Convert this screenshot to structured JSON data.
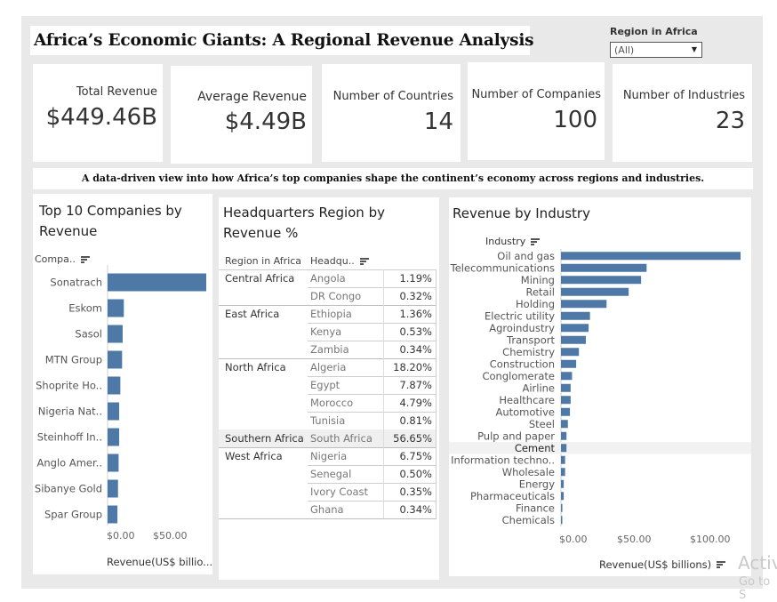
{
  "title": "Africa’s Economic Giants: A Regional Revenue Analysis",
  "filter": {
    "label": "Region in Africa",
    "value": "(All)"
  },
  "kpis": [
    {
      "label": "Total Revenue",
      "value": "$449.46B"
    },
    {
      "label": "Average Revenue",
      "value": "$4.49B"
    },
    {
      "label": "Number of Countries",
      "value": "14"
    },
    {
      "label": "Number of Companies",
      "value": "100"
    },
    {
      "label": "Number of Industries",
      "value": "23"
    }
  ],
  "subtitle": "A data-driven view into how Africa’s top companies shape the continent’s economy across regions and industries.",
  "top_companies": {
    "title_line1": "Top 10 Companies by",
    "title_line2": "Revenue",
    "header": "Compa..",
    "axis_ticks": [
      "$0.00",
      "$50.00"
    ],
    "axis_label": "Revenue(US$ billio..."
  },
  "hq_table": {
    "title_line1": "Headquarters Region by",
    "title_line2": "Revenue  %",
    "col1": "Region in Africa",
    "col2": "Headqu..",
    "groups": [
      {
        "region": "Central Africa",
        "rows": [
          {
            "country": "Angola",
            "pct": "1.19%"
          },
          {
            "country": "DR Congo",
            "pct": "0.32%"
          }
        ]
      },
      {
        "region": "East Africa",
        "rows": [
          {
            "country": "Ethiopia",
            "pct": "1.36%"
          },
          {
            "country": "Kenya",
            "pct": "0.53%"
          },
          {
            "country": "Zambia",
            "pct": "0.34%"
          }
        ]
      },
      {
        "region": "North Africa",
        "rows": [
          {
            "country": "Algeria",
            "pct": "18.20%"
          },
          {
            "country": "Egypt",
            "pct": "7.87%"
          },
          {
            "country": "Morocco",
            "pct": "4.79%"
          },
          {
            "country": "Tunisia",
            "pct": "0.81%"
          }
        ]
      },
      {
        "region": "Southern Africa",
        "rows": [
          {
            "country": "South Africa",
            "pct": "56.65%"
          }
        ]
      },
      {
        "region": "West Africa",
        "rows": [
          {
            "country": "Nigeria",
            "pct": "6.75%"
          },
          {
            "country": "Senegal",
            "pct": "0.50%"
          },
          {
            "country": "Ivory Coast",
            "pct": "0.35%"
          },
          {
            "country": "Ghana",
            "pct": "0.34%"
          }
        ]
      }
    ]
  },
  "industry": {
    "title": "Revenue by Industry",
    "header": "Industry",
    "axis_ticks": [
      "$0.00",
      "$50.00",
      "$100.00"
    ],
    "axis_label": "Revenue(US$ billions)"
  },
  "watermark": {
    "line1": "Activ",
    "line2": "Go to S"
  },
  "chart_data": [
    {
      "type": "bar",
      "orientation": "horizontal",
      "categories": [
        "Sonatrach",
        "Eskom",
        "Sasol",
        "MTN Group",
        "Shoprite Ho..",
        "Nigeria Nat..",
        "Steinhoff In..",
        "Anglo Amer..",
        "Sibanye Gold",
        "Spar Group"
      ],
      "values": [
        85,
        14,
        13,
        12.5,
        11,
        10,
        10,
        9.5,
        9,
        8.5
      ],
      "xlabel": "Revenue(US$ billio...",
      "xlim": [
        0,
        85
      ]
    },
    {
      "type": "bar",
      "orientation": "horizontal",
      "categories": [
        "Oil and gas",
        "Telecommunications",
        "Mining",
        "Retail",
        "Holding",
        "Electric utility",
        "Agroindustry",
        "Transport",
        "Chemistry",
        "Construction",
        "Conglomerate",
        "Airline",
        "Healthcare",
        "Automotive",
        "Steel",
        "Pulp and paper",
        "Cement",
        "Information techno..",
        "Wholesale",
        "Energy",
        "Pharmaceuticals",
        "Finance",
        "Chemicals"
      ],
      "values": [
        130,
        62,
        58,
        49,
        33,
        21,
        20,
        18,
        13,
        11,
        8,
        7,
        7,
        6.5,
        5,
        4,
        4,
        3,
        3,
        2,
        2,
        1,
        0.5
      ],
      "xlabel": "Revenue(US$ billions)",
      "xlim": [
        0,
        130
      ]
    }
  ]
}
